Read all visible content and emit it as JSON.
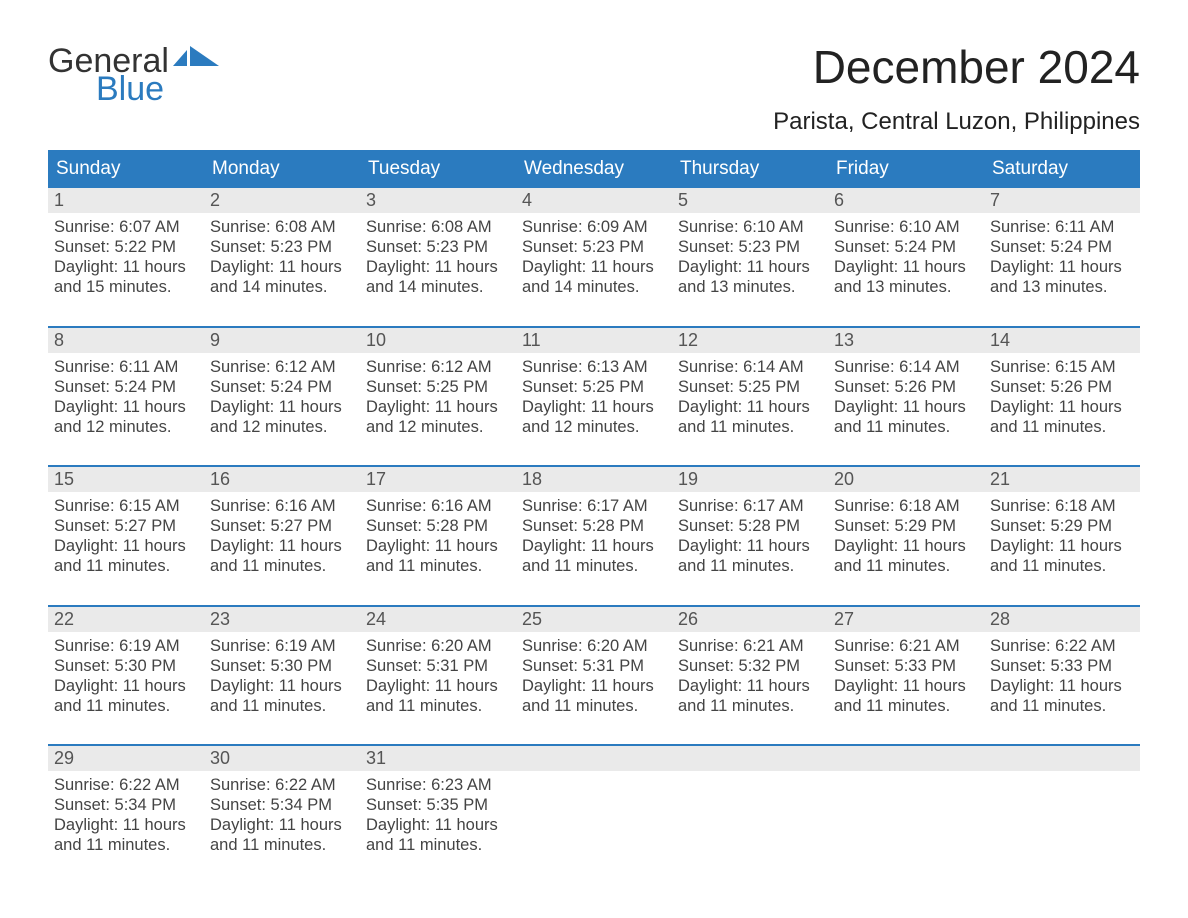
{
  "brand": {
    "top": "General",
    "bottom": "Blue"
  },
  "colors": {
    "brand_blue": "#2b7bbf",
    "stripe": "#eaeaea",
    "text_dark": "#333333",
    "text_muted": "#444444",
    "background": "#ffffff"
  },
  "title": "December 2024",
  "location": "Parista, Central Luzon, Philippines",
  "weekdays": [
    "Sunday",
    "Monday",
    "Tuesday",
    "Wednesday",
    "Thursday",
    "Friday",
    "Saturday"
  ],
  "labels": {
    "sunrise": "Sunrise:",
    "sunset": "Sunset:",
    "daylight": "Daylight:"
  },
  "weeks": [
    [
      {
        "n": "1",
        "sunrise": "6:07 AM",
        "sunset": "5:22 PM",
        "daylight": "11 hours and 15 minutes."
      },
      {
        "n": "2",
        "sunrise": "6:08 AM",
        "sunset": "5:23 PM",
        "daylight": "11 hours and 14 minutes."
      },
      {
        "n": "3",
        "sunrise": "6:08 AM",
        "sunset": "5:23 PM",
        "daylight": "11 hours and 14 minutes."
      },
      {
        "n": "4",
        "sunrise": "6:09 AM",
        "sunset": "5:23 PM",
        "daylight": "11 hours and 14 minutes."
      },
      {
        "n": "5",
        "sunrise": "6:10 AM",
        "sunset": "5:23 PM",
        "daylight": "11 hours and 13 minutes."
      },
      {
        "n": "6",
        "sunrise": "6:10 AM",
        "sunset": "5:24 PM",
        "daylight": "11 hours and 13 minutes."
      },
      {
        "n": "7",
        "sunrise": "6:11 AM",
        "sunset": "5:24 PM",
        "daylight": "11 hours and 13 minutes."
      }
    ],
    [
      {
        "n": "8",
        "sunrise": "6:11 AM",
        "sunset": "5:24 PM",
        "daylight": "11 hours and 12 minutes."
      },
      {
        "n": "9",
        "sunrise": "6:12 AM",
        "sunset": "5:24 PM",
        "daylight": "11 hours and 12 minutes."
      },
      {
        "n": "10",
        "sunrise": "6:12 AM",
        "sunset": "5:25 PM",
        "daylight": "11 hours and 12 minutes."
      },
      {
        "n": "11",
        "sunrise": "6:13 AM",
        "sunset": "5:25 PM",
        "daylight": "11 hours and 12 minutes."
      },
      {
        "n": "12",
        "sunrise": "6:14 AM",
        "sunset": "5:25 PM",
        "daylight": "11 hours and 11 minutes."
      },
      {
        "n": "13",
        "sunrise": "6:14 AM",
        "sunset": "5:26 PM",
        "daylight": "11 hours and 11 minutes."
      },
      {
        "n": "14",
        "sunrise": "6:15 AM",
        "sunset": "5:26 PM",
        "daylight": "11 hours and 11 minutes."
      }
    ],
    [
      {
        "n": "15",
        "sunrise": "6:15 AM",
        "sunset": "5:27 PM",
        "daylight": "11 hours and 11 minutes."
      },
      {
        "n": "16",
        "sunrise": "6:16 AM",
        "sunset": "5:27 PM",
        "daylight": "11 hours and 11 minutes."
      },
      {
        "n": "17",
        "sunrise": "6:16 AM",
        "sunset": "5:28 PM",
        "daylight": "11 hours and 11 minutes."
      },
      {
        "n": "18",
        "sunrise": "6:17 AM",
        "sunset": "5:28 PM",
        "daylight": "11 hours and 11 minutes."
      },
      {
        "n": "19",
        "sunrise": "6:17 AM",
        "sunset": "5:28 PM",
        "daylight": "11 hours and 11 minutes."
      },
      {
        "n": "20",
        "sunrise": "6:18 AM",
        "sunset": "5:29 PM",
        "daylight": "11 hours and 11 minutes."
      },
      {
        "n": "21",
        "sunrise": "6:18 AM",
        "sunset": "5:29 PM",
        "daylight": "11 hours and 11 minutes."
      }
    ],
    [
      {
        "n": "22",
        "sunrise": "6:19 AM",
        "sunset": "5:30 PM",
        "daylight": "11 hours and 11 minutes."
      },
      {
        "n": "23",
        "sunrise": "6:19 AM",
        "sunset": "5:30 PM",
        "daylight": "11 hours and 11 minutes."
      },
      {
        "n": "24",
        "sunrise": "6:20 AM",
        "sunset": "5:31 PM",
        "daylight": "11 hours and 11 minutes."
      },
      {
        "n": "25",
        "sunrise": "6:20 AM",
        "sunset": "5:31 PM",
        "daylight": "11 hours and 11 minutes."
      },
      {
        "n": "26",
        "sunrise": "6:21 AM",
        "sunset": "5:32 PM",
        "daylight": "11 hours and 11 minutes."
      },
      {
        "n": "27",
        "sunrise": "6:21 AM",
        "sunset": "5:33 PM",
        "daylight": "11 hours and 11 minutes."
      },
      {
        "n": "28",
        "sunrise": "6:22 AM",
        "sunset": "5:33 PM",
        "daylight": "11 hours and 11 minutes."
      }
    ],
    [
      {
        "n": "29",
        "sunrise": "6:22 AM",
        "sunset": "5:34 PM",
        "daylight": "11 hours and 11 minutes."
      },
      {
        "n": "30",
        "sunrise": "6:22 AM",
        "sunset": "5:34 PM",
        "daylight": "11 hours and 11 minutes."
      },
      {
        "n": "31",
        "sunrise": "6:23 AM",
        "sunset": "5:35 PM",
        "daylight": "11 hours and 11 minutes."
      },
      null,
      null,
      null,
      null
    ]
  ]
}
